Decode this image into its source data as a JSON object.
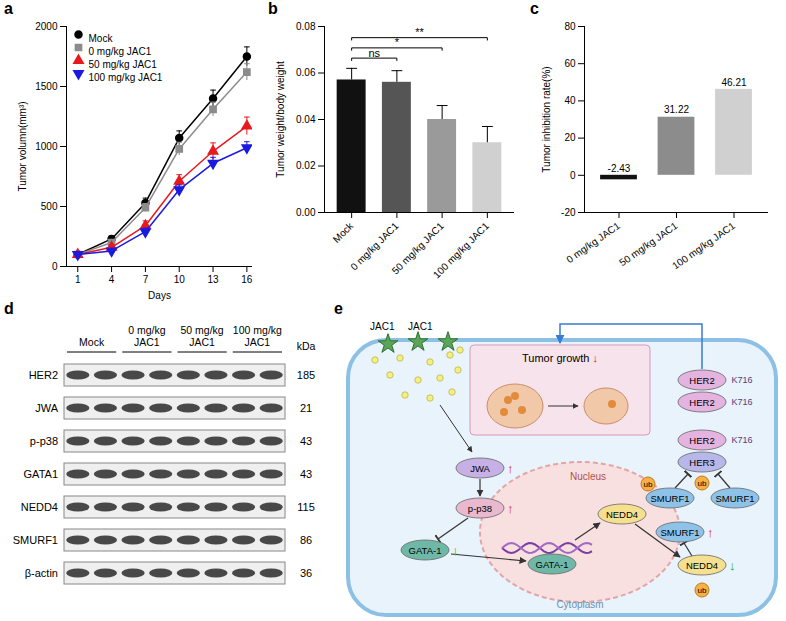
{
  "panels": [
    "a",
    "b",
    "c",
    "d",
    "e"
  ],
  "chart_data": [
    {
      "type": "line",
      "x": [
        1,
        4,
        7,
        10,
        13,
        16
      ],
      "xlim": [
        0,
        16.5
      ],
      "xticks": [
        1,
        4,
        7,
        10,
        13,
        16
      ],
      "ylim": [
        0,
        2000
      ],
      "yticks": [
        0,
        500,
        1000,
        1500,
        2000
      ],
      "x_label": "Days",
      "y_label": "Tumor volumn(mm³)",
      "legend": "top-left",
      "series": [
        {
          "name": "Mock",
          "color": "#000000",
          "marker": "circle",
          "values": [
            100,
            230,
            530,
            1070,
            1400,
            1750
          ],
          "errors": [
            10,
            25,
            40,
            60,
            70,
            80
          ]
        },
        {
          "name": "0 mg/kg JAC1",
          "color": "#8c8c8c",
          "marker": "square",
          "values": [
            100,
            200,
            490,
            980,
            1310,
            1620
          ],
          "errors": [
            10,
            20,
            35,
            55,
            60,
            70
          ]
        },
        {
          "name": "50 mg/kg JAC1",
          "color": "#e8191e",
          "marker": "triangle",
          "values": [
            100,
            160,
            340,
            710,
            960,
            1170
          ],
          "errors": [
            10,
            20,
            40,
            55,
            70,
            75
          ]
        },
        {
          "name": "100 mg/kg JAC1",
          "color": "#1a1ae0",
          "marker": "triangle-down",
          "values": [
            100,
            130,
            290,
            640,
            860,
            990
          ],
          "errors": [
            10,
            15,
            30,
            40,
            50,
            50
          ]
        }
      ]
    },
    {
      "type": "bar",
      "categories": [
        "Mock",
        "0 mg/kg JAC1",
        "50 mg/kg JAC1",
        "100 mg/kg JAC1"
      ],
      "values": [
        0.057,
        0.056,
        0.04,
        0.03
      ],
      "errors": [
        0.005,
        0.005,
        0.006,
        0.007
      ],
      "colors": [
        "#111111",
        "#555555",
        "#9a9a9a",
        "#d0d0d0"
      ],
      "ylim": [
        0,
        0.08
      ],
      "yticks": [
        {
          "value": 0,
          "label": "0.00"
        },
        {
          "value": 0.02,
          "label": "0.02"
        },
        {
          "value": 0.04,
          "label": "0.04"
        },
        {
          "value": 0.06,
          "label": "0.06"
        },
        {
          "value": 0.08,
          "label": "0.08"
        }
      ],
      "y_label": "Tumor weight/body weight",
      "annotations": [
        {
          "from": "Mock",
          "to": "0 mg/kg JAC1",
          "text": "ns"
        },
        {
          "from": "Mock",
          "to": "50 mg/kg JAC1",
          "text": "*"
        },
        {
          "from": "Mock",
          "to": "100 mg/kg JAC1",
          "text": "**"
        }
      ]
    },
    {
      "type": "bar",
      "categories": [
        "0 mg/kg JAC1",
        "50 mg/kg JAC1",
        "100 mg/kg JAC1"
      ],
      "values": [
        -2.43,
        31.22,
        46.21
      ],
      "colors": [
        "#111111",
        "#8c8c8c",
        "#d0d0d0"
      ],
      "ylim": [
        -20,
        80
      ],
      "yticks": [
        -20,
        0,
        20,
        40,
        60,
        80
      ],
      "y_label": "Tumor inhibition rate(%)",
      "data_labels": true
    }
  ],
  "western_blot": {
    "groups": [
      [
        "Mock"
      ],
      [
        "0 mg/kg",
        "JAC1"
      ],
      [
        "50 mg/kg",
        "JAC1"
      ],
      [
        "100 mg/kg",
        "JAC1"
      ]
    ],
    "unit": "kDa",
    "rows": [
      {
        "protein": "HER2",
        "kDa": 185
      },
      {
        "protein": "JWA",
        "kDa": 21
      },
      {
        "protein": "p-p38",
        "kDa": 43
      },
      {
        "protein": "GATA1",
        "kDa": 43
      },
      {
        "protein": "NEDD4",
        "kDa": 115
      },
      {
        "protein": "SMURF1",
        "kDa": 86
      },
      {
        "protein": "β-actin",
        "kDa": 36
      }
    ]
  },
  "diagram": {
    "drug": [
      "JAC1",
      "JAC1"
    ],
    "outcome": {
      "label": "Tumor growth",
      "change": "↓",
      "color": "#e02020"
    },
    "compartments": [
      "Nucleus",
      "Cytoplasm"
    ],
    "molecules": [
      {
        "label": "JWA",
        "change": "↑",
        "color": "#e02020"
      },
      {
        "label": "p-p38",
        "change": "↑",
        "color": "#e02020"
      },
      {
        "label": "GATA-1",
        "change": "↓",
        "color": "#23a03a"
      },
      {
        "label": "GATA-1"
      },
      {
        "label": "NEDD4"
      },
      {
        "label": "NEDD4",
        "change": "↓",
        "color": "#23a03a"
      },
      {
        "label": "SMURF1",
        "change": "↑",
        "color": "#e02020"
      },
      {
        "label": "SMURF1"
      },
      {
        "label": "SMURF1"
      },
      {
        "label": "HER2"
      },
      {
        "label": "HER2"
      },
      {
        "label": "HER2"
      },
      {
        "label": "HER3"
      }
    ],
    "sites": [
      "K716",
      "K716",
      "K716"
    ],
    "ubiquitin": [
      "ub",
      "ub",
      "ub"
    ]
  }
}
